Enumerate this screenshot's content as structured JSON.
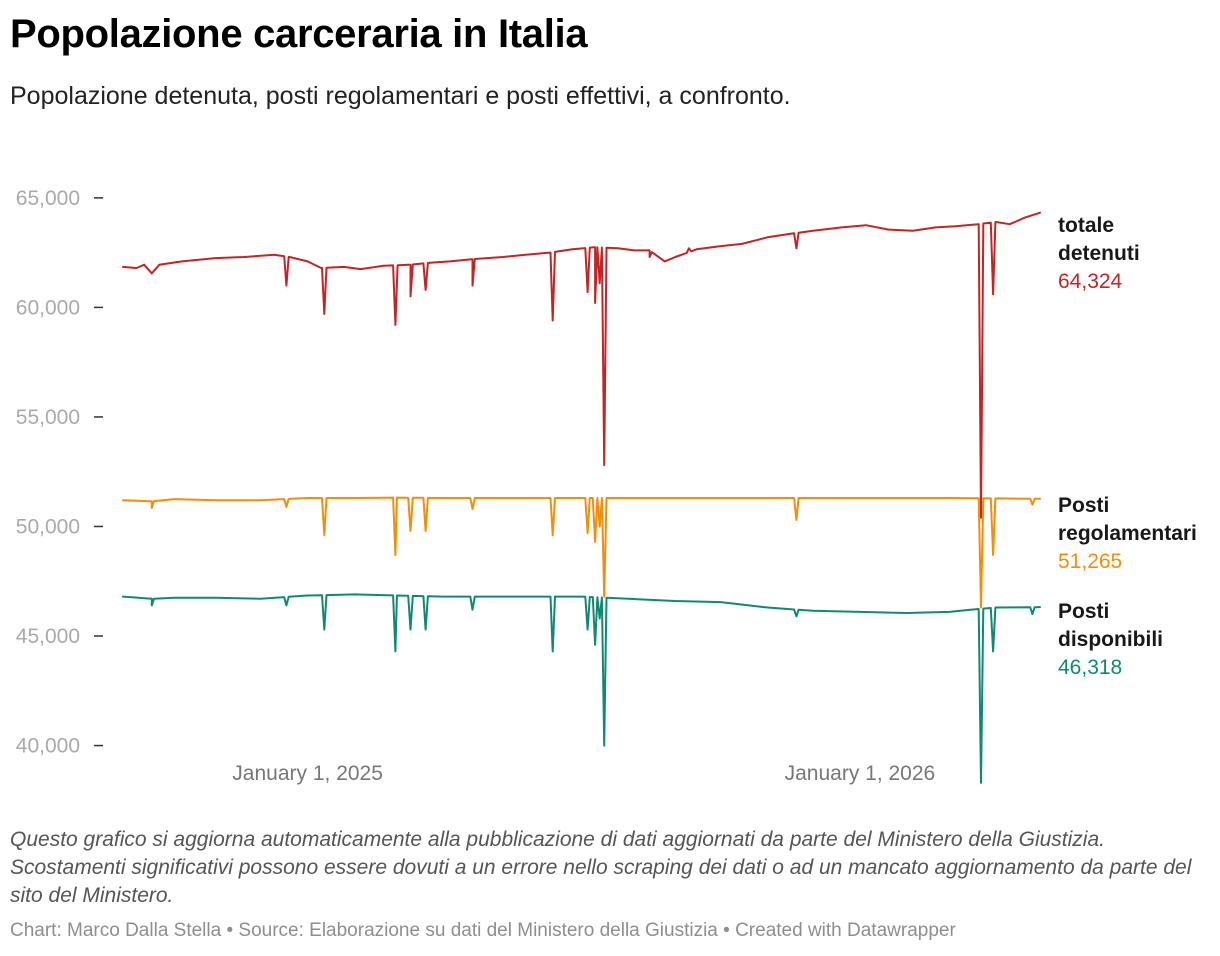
{
  "header": {
    "title": "Popolazione carceraria in Italia",
    "subtitle": "Popolazione detenuta, posti regolamentari e posti effettivi, a confronto."
  },
  "chart_data": {
    "type": "line",
    "title": "Popolazione carceraria in Italia",
    "xlabel": "",
    "ylabel": "",
    "ylim": [
      38200,
      66500
    ],
    "y_ticks": [
      {
        "value": 65000,
        "label": "65,000"
      },
      {
        "value": 60000,
        "label": "60,000"
      },
      {
        "value": 55000,
        "label": "55,000"
      },
      {
        "value": 50000,
        "label": "50,000"
      },
      {
        "value": 45000,
        "label": "45,000"
      },
      {
        "value": 40000,
        "label": "40,000"
      }
    ],
    "x_range": [
      "2024-09-01",
      "2026-04-30"
    ],
    "x_ticks": [
      {
        "date": "2025-01-01",
        "label": "January 1, 2025"
      },
      {
        "date": "2026-01-01",
        "label": "January 1, 2026"
      }
    ],
    "series": [
      {
        "name": "totale detenuti",
        "label_lines": [
          "totale",
          "detenuti"
        ],
        "last_value_label": "64,324",
        "color": "#c42424",
        "last_value": 64324,
        "points": [
          [
            "2024-09-01",
            61850
          ],
          [
            "2024-09-10",
            61800
          ],
          [
            "2024-09-15",
            61950
          ],
          [
            "2024-09-20",
            61550
          ],
          [
            "2024-09-25",
            61950
          ],
          [
            "2024-10-10",
            62100
          ],
          [
            "2024-11-01",
            62250
          ],
          [
            "2024-11-20",
            62300
          ],
          [
            "2024-12-10",
            62400
          ],
          [
            "2024-12-20",
            62300
          ],
          [
            "2025-01-01",
            62100
          ],
          [
            "2025-01-10",
            61800
          ],
          [
            "2025-01-25",
            61850
          ],
          [
            "2025-02-05",
            61750
          ],
          [
            "2025-02-20",
            61900
          ],
          [
            "2025-03-10",
            61950
          ],
          [
            "2025-03-25",
            62050
          ],
          [
            "2025-04-05",
            62100
          ],
          [
            "2025-04-20",
            62200
          ],
          [
            "2025-05-10",
            62300
          ],
          [
            "2025-05-25",
            62400
          ],
          [
            "2025-06-10",
            62500
          ],
          [
            "2025-06-25",
            62650
          ],
          [
            "2025-07-10",
            62750
          ],
          [
            "2025-07-25",
            62700
          ],
          [
            "2025-08-05",
            62600
          ],
          [
            "2025-08-15",
            62600
          ],
          [
            "2025-08-25",
            62100
          ],
          [
            "2025-09-01",
            62300
          ],
          [
            "2025-09-15",
            62650
          ],
          [
            "2025-10-01",
            62800
          ],
          [
            "2025-10-15",
            62900
          ],
          [
            "2025-11-01",
            63200
          ],
          [
            "2025-11-15",
            63350
          ],
          [
            "2025-12-01",
            63500
          ],
          [
            "2025-12-20",
            63650
          ],
          [
            "2026-01-05",
            63750
          ],
          [
            "2026-01-20",
            63550
          ],
          [
            "2026-02-05",
            63500
          ],
          [
            "2026-02-20",
            63650
          ],
          [
            "2026-03-05",
            63700
          ],
          [
            "2026-03-20",
            63800
          ],
          [
            "2026-04-01",
            63900
          ],
          [
            "2026-04-10",
            63800
          ],
          [
            "2026-04-20",
            64100
          ],
          [
            "2026-04-30",
            64324
          ]
        ],
        "dips": [
          [
            "2024-09-20",
            61550
          ],
          [
            "2024-12-18",
            61000
          ],
          [
            "2025-01-12",
            59700
          ],
          [
            "2025-02-28",
            59200
          ],
          [
            "2025-03-10",
            60500
          ],
          [
            "2025-03-20",
            60800
          ],
          [
            "2025-04-20",
            61000
          ],
          [
            "2025-06-12",
            59400
          ],
          [
            "2025-07-05",
            60700
          ],
          [
            "2025-07-10",
            60200
          ],
          [
            "2025-07-13",
            61100
          ],
          [
            "2025-07-16",
            52800
          ],
          [
            "2025-08-15",
            62300
          ],
          [
            "2025-09-10",
            62700
          ],
          [
            "2025-11-20",
            62700
          ],
          [
            "2026-03-22",
            50400
          ],
          [
            "2026-03-30",
            60600
          ]
        ]
      },
      {
        "name": "Posti regolamentari",
        "label_lines": [
          "Posti",
          "regolamentari"
        ],
        "last_value_label": "51,265",
        "color": "#f28e0c",
        "last_value": 51265,
        "points": [
          [
            "2024-09-01",
            51200
          ],
          [
            "2024-09-20",
            51150
          ],
          [
            "2024-10-05",
            51250
          ],
          [
            "2024-11-01",
            51200
          ],
          [
            "2024-12-01",
            51200
          ],
          [
            "2025-01-01",
            51300
          ],
          [
            "2025-02-01",
            51300
          ],
          [
            "2025-03-01",
            51320
          ],
          [
            "2025-04-01",
            51300
          ],
          [
            "2025-05-01",
            51300
          ],
          [
            "2025-06-01",
            51300
          ],
          [
            "2025-07-01",
            51300
          ],
          [
            "2025-08-01",
            51300
          ],
          [
            "2025-09-01",
            51300
          ],
          [
            "2025-10-01",
            51300
          ],
          [
            "2025-11-01",
            51300
          ],
          [
            "2025-12-01",
            51300
          ],
          [
            "2026-01-01",
            51300
          ],
          [
            "2026-02-01",
            51300
          ],
          [
            "2026-03-01",
            51300
          ],
          [
            "2026-04-01",
            51280
          ],
          [
            "2026-04-30",
            51265
          ]
        ],
        "dips": [
          [
            "2024-09-20",
            50850
          ],
          [
            "2024-12-18",
            50900
          ],
          [
            "2025-01-12",
            49600
          ],
          [
            "2025-02-28",
            48700
          ],
          [
            "2025-03-10",
            49800
          ],
          [
            "2025-03-20",
            49800
          ],
          [
            "2025-04-20",
            50800
          ],
          [
            "2025-06-12",
            49600
          ],
          [
            "2025-07-05",
            49700
          ],
          [
            "2025-07-10",
            49300
          ],
          [
            "2025-07-13",
            50000
          ],
          [
            "2025-07-16",
            46800
          ],
          [
            "2025-11-20",
            50300
          ],
          [
            "2026-03-22",
            46300
          ],
          [
            "2026-03-30",
            48700
          ],
          [
            "2026-04-25",
            51000
          ]
        ]
      },
      {
        "name": "Posti disponibili",
        "label_lines": [
          "Posti",
          "disponibili"
        ],
        "last_value_label": "46,318",
        "color": "#0f8a72",
        "last_value": 46318,
        "points": [
          [
            "2024-09-01",
            46800
          ],
          [
            "2024-09-20",
            46700
          ],
          [
            "2024-10-05",
            46750
          ],
          [
            "2024-11-01",
            46750
          ],
          [
            "2024-12-01",
            46700
          ],
          [
            "2025-01-01",
            46850
          ],
          [
            "2025-02-01",
            46900
          ],
          [
            "2025-03-01",
            46850
          ],
          [
            "2025-04-01",
            46800
          ],
          [
            "2025-05-01",
            46800
          ],
          [
            "2025-06-01",
            46800
          ],
          [
            "2025-07-01",
            46800
          ],
          [
            "2025-08-01",
            46700
          ],
          [
            "2025-09-01",
            46600
          ],
          [
            "2025-10-01",
            46550
          ],
          [
            "2025-11-01",
            46300
          ],
          [
            "2025-12-01",
            46150
          ],
          [
            "2026-01-01",
            46100
          ],
          [
            "2026-02-01",
            46050
          ],
          [
            "2026-03-01",
            46100
          ],
          [
            "2026-03-15",
            46200
          ],
          [
            "2026-04-01",
            46300
          ],
          [
            "2026-04-30",
            46318
          ]
        ],
        "dips": [
          [
            "2024-09-20",
            46400
          ],
          [
            "2024-12-18",
            46400
          ],
          [
            "2025-01-12",
            45300
          ],
          [
            "2025-02-28",
            44300
          ],
          [
            "2025-03-10",
            45300
          ],
          [
            "2025-03-20",
            45300
          ],
          [
            "2025-04-20",
            46200
          ],
          [
            "2025-06-12",
            44300
          ],
          [
            "2025-07-05",
            45300
          ],
          [
            "2025-07-10",
            44600
          ],
          [
            "2025-07-13",
            45800
          ],
          [
            "2025-07-16",
            40000
          ],
          [
            "2025-11-20",
            45900
          ],
          [
            "2026-03-22",
            38300
          ],
          [
            "2026-03-30",
            44300
          ],
          [
            "2026-04-25",
            46000
          ]
        ]
      }
    ]
  },
  "notes": "Questo grafico si aggiorna automaticamente alla pubblicazione di dati aggiornati da parte del Ministero della Giustizia. Scostamenti significativi possono essere dovuti a un errore nello scraping dei dati o ad un mancato aggiornamento da parte del sito del Ministero.",
  "footer": "Chart: Marco Dalla Stella • Source: Elaborazione su dati del Ministero della Giustizia • Created with Datawrapper"
}
